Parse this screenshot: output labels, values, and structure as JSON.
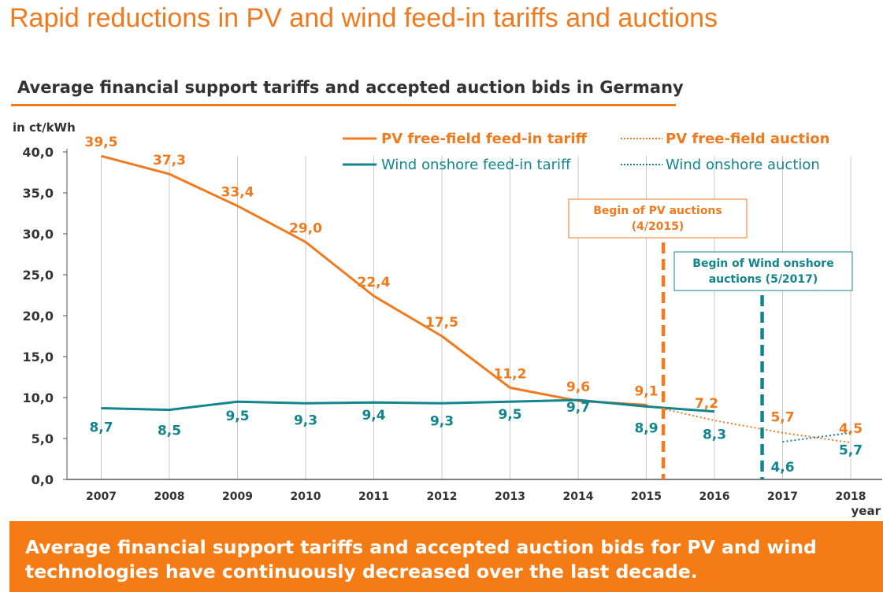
{
  "slide": {
    "title": "Rapid reductions in PV and wind feed-in tariffs and auctions",
    "subtitle": "Average financial support tariffs and accepted auction bids in Germany",
    "banner": "Average financial support tariffs and accepted auction bids for PV and wind technologies have continuously decreased over the last decade."
  },
  "colors": {
    "pv": "#F07A1E",
    "wind": "#12858E",
    "text": "#333333"
  },
  "chart_data": {
    "type": "line",
    "ylabel": "in ct/kWh",
    "xlabel": "year",
    "ylim": [
      0,
      40
    ],
    "y_ticks": [
      "0,0",
      "5,0",
      "10,0",
      "15,0",
      "20,0",
      "25,0",
      "30,0",
      "35,0",
      "40,0"
    ],
    "categories": [
      "2007",
      "2008",
      "2009",
      "2010",
      "2011",
      "2012",
      "2013",
      "2014",
      "2015",
      "2016",
      "2017",
      "2018"
    ],
    "legend_position": "top-right",
    "series": [
      {
        "name": "PV free-field feed-in tariff",
        "style": "solid",
        "points": [
          {
            "x": "2007",
            "y": 39.5,
            "label": "39,5"
          },
          {
            "x": "2008",
            "y": 37.3,
            "label": "37,3"
          },
          {
            "x": "2009",
            "y": 33.4,
            "label": "33,4"
          },
          {
            "x": "2010",
            "y": 29.0,
            "label": "29,0"
          },
          {
            "x": "2011",
            "y": 22.4,
            "label": "22,4"
          },
          {
            "x": "2012",
            "y": 17.5,
            "label": "17,5"
          },
          {
            "x": "2013",
            "y": 11.2,
            "label": "11,2"
          },
          {
            "x": "2014",
            "y": 9.6,
            "label": "9,6"
          },
          {
            "x": "2015",
            "y": 9.1,
            "label": "9,1"
          }
        ]
      },
      {
        "name": "PV free-field auction",
        "style": "dotted",
        "points": [
          {
            "x": "2016",
            "y": 7.2,
            "label": "7,2"
          },
          {
            "x": "2017",
            "y": 5.7,
            "label": "5,7"
          },
          {
            "x": "2018",
            "y": 4.5,
            "label": "4,5"
          }
        ]
      },
      {
        "name": "Wind onshore feed-in tariff",
        "style": "solid",
        "points": [
          {
            "x": "2007",
            "y": 8.7,
            "label": "8,7"
          },
          {
            "x": "2008",
            "y": 8.5,
            "label": "8,5"
          },
          {
            "x": "2009",
            "y": 9.5,
            "label": "9,5"
          },
          {
            "x": "2010",
            "y": 9.3,
            "label": "9,3"
          },
          {
            "x": "2011",
            "y": 9.4,
            "label": "9,4"
          },
          {
            "x": "2012",
            "y": 9.3,
            "label": "9,3"
          },
          {
            "x": "2013",
            "y": 9.5,
            "label": "9,5"
          },
          {
            "x": "2014",
            "y": 9.7,
            "label": "9,7"
          },
          {
            "x": "2015",
            "y": 8.9,
            "label": "8,9"
          },
          {
            "x": "2016",
            "y": 8.3,
            "label": "8,3"
          }
        ]
      },
      {
        "name": "Wind onshore auction",
        "style": "dotted",
        "points": [
          {
            "x": "2017",
            "y": 4.6,
            "label": "4,6"
          },
          {
            "x": "2018",
            "y": 5.7,
            "label": "5,7"
          }
        ]
      }
    ],
    "annotations": [
      {
        "line1": "Begin of PV auctions",
        "line2": "(4/2015)",
        "at": 2015.25,
        "series": "pv"
      },
      {
        "line1": "Begin of Wind onshore",
        "line2": "auctions (5/2017)",
        "at": 2016.7,
        "series": "wind"
      }
    ]
  }
}
